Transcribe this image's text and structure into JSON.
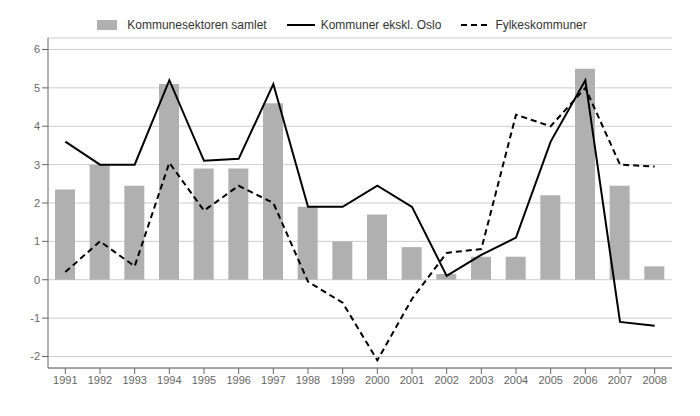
{
  "chart_data": {
    "type": "bar",
    "categories": [
      "1991",
      "1992",
      "1993",
      "1994",
      "1995",
      "1996",
      "1997",
      "1998",
      "1999",
      "2000",
      "2001",
      "2002",
      "2003",
      "2004",
      "2005",
      "2006",
      "2007",
      "2008"
    ],
    "series": [
      {
        "name": "Kommunesektoren samlet",
        "type": "bar",
        "color": "#b0b0b0",
        "values": [
          2.35,
          3.0,
          2.45,
          5.1,
          2.9,
          2.9,
          4.6,
          1.9,
          1.0,
          1.7,
          0.85,
          0.15,
          0.6,
          0.6,
          2.2,
          5.5,
          2.45,
          0.35
        ]
      },
      {
        "name": "Kommuner ekskl. Oslo",
        "type": "line",
        "color": "#000000",
        "line_style": "solid",
        "values": [
          3.6,
          3.0,
          3.0,
          5.2,
          3.1,
          3.15,
          5.1,
          1.9,
          1.9,
          2.45,
          1.9,
          0.1,
          0.65,
          1.1,
          3.6,
          5.2,
          -1.1,
          -1.2
        ]
      },
      {
        "name": "Fylkeskommuner",
        "type": "line",
        "color": "#000000",
        "line_style": "dashed",
        "values": [
          0.2,
          1.0,
          0.35,
          3.05,
          1.8,
          2.45,
          2.0,
          -0.05,
          -0.6,
          -2.1,
          -0.5,
          0.7,
          0.8,
          4.3,
          4.0,
          5.0,
          3.0,
          2.95
        ]
      }
    ],
    "ylim": [
      -2.3,
      6.3
    ],
    "yticks": [
      -2,
      -1,
      0,
      1,
      2,
      3,
      4,
      5,
      6
    ],
    "grid": true,
    "legend": "top"
  }
}
